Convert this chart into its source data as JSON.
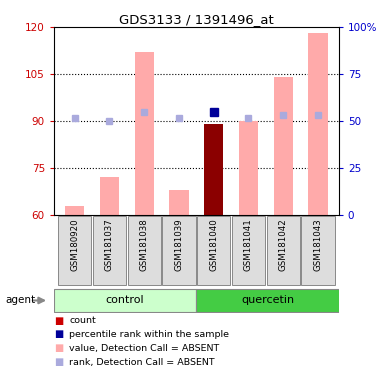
{
  "title": "GDS3133 / 1391496_at",
  "samples": [
    "GSM180920",
    "GSM181037",
    "GSM181038",
    "GSM181039",
    "GSM181040",
    "GSM181041",
    "GSM181042",
    "GSM181043"
  ],
  "group_labels": [
    "control",
    "quercetin"
  ],
  "bar_values": [
    63,
    72,
    112,
    68,
    89,
    90,
    104,
    118
  ],
  "bar_colors": [
    "#ffaaaa",
    "#ffaaaa",
    "#ffaaaa",
    "#ffaaaa",
    "#8b0000",
    "#ffaaaa",
    "#ffaaaa",
    "#ffaaaa"
  ],
  "rank_dots": [
    91,
    90,
    93,
    91,
    null,
    91,
    92,
    92
  ],
  "rank_dot_color": "#aaaadd",
  "percentile_dot_val": 93,
  "percentile_dot_idx": 4,
  "percentile_dot_color": "#000099",
  "ylim_left": [
    60,
    120
  ],
  "ylim_right": [
    0,
    100
  ],
  "yticks_left": [
    60,
    75,
    90,
    105,
    120
  ],
  "ytick_labels_left": [
    "60",
    "75",
    "90",
    "105",
    "120"
  ],
  "yticks_right_vals": [
    0,
    25,
    50,
    75,
    100
  ],
  "ytick_labels_right": [
    "0",
    "25",
    "50",
    "75",
    "100%"
  ],
  "left_axis_color": "#cc0000",
  "right_axis_color": "#0000cc",
  "grid_yticks": [
    75,
    90,
    105
  ],
  "control_color_light": "#ccffcc",
  "control_color": "#ccffcc",
  "quercetin_color": "#44cc44",
  "sample_box_color": "#dddddd",
  "agent_label": "agent",
  "legend_items": [
    {
      "color": "#cc0000",
      "label": "count"
    },
    {
      "color": "#000099",
      "label": "percentile rank within the sample"
    },
    {
      "color": "#ffaaaa",
      "label": "value, Detection Call = ABSENT"
    },
    {
      "color": "#aaaadd",
      "label": "rank, Detection Call = ABSENT"
    }
  ]
}
